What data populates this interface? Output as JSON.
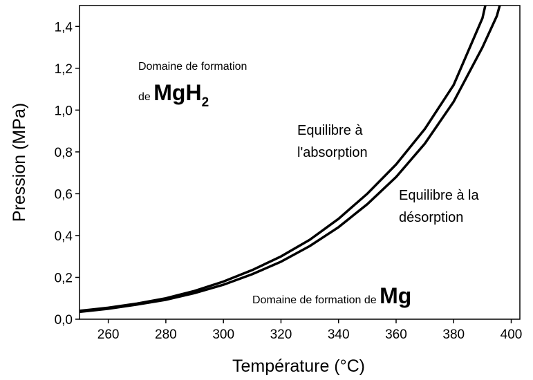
{
  "chart_data": {
    "type": "line",
    "xlabel": "Température (°C)",
    "ylabel": "Pression (MPa)",
    "xlim": [
      250,
      403
    ],
    "ylim": [
      0,
      1.5
    ],
    "xticks": [
      260,
      280,
      300,
      320,
      340,
      360,
      380,
      400
    ],
    "yticks": [
      {
        "value": 0,
        "label": "0,0"
      },
      {
        "value": 0.2,
        "label": "0,2"
      },
      {
        "value": 0.4,
        "label": "0,4"
      },
      {
        "value": 0.6,
        "label": "0,6"
      },
      {
        "value": 0.8,
        "label": "0,8"
      },
      {
        "value": 1.0,
        "label": "1,0"
      },
      {
        "value": 1.2,
        "label": "1,2"
      },
      {
        "value": 1.4,
        "label": "1,4"
      }
    ],
    "grid": false,
    "series": [
      {
        "name": "Equilibre à l'absorption",
        "color": "#000000",
        "x": [
          250,
          260,
          270,
          280,
          290,
          300,
          310,
          320,
          330,
          340,
          350,
          360,
          370,
          380,
          390,
          391
        ],
        "values": [
          0.04,
          0.055,
          0.075,
          0.1,
          0.135,
          0.18,
          0.235,
          0.3,
          0.38,
          0.48,
          0.6,
          0.74,
          0.91,
          1.12,
          1.44,
          1.5
        ]
      },
      {
        "name": "Equilibre à la désorption",
        "color": "#000000",
        "x": [
          250,
          260,
          270,
          280,
          290,
          300,
          310,
          320,
          330,
          340,
          350,
          360,
          370,
          380,
          390,
          395,
          396
        ],
        "values": [
          0.035,
          0.05,
          0.07,
          0.093,
          0.125,
          0.165,
          0.215,
          0.275,
          0.35,
          0.44,
          0.55,
          0.68,
          0.84,
          1.04,
          1.3,
          1.45,
          1.5
        ]
      }
    ],
    "annotations": {
      "mgh2_zone": {
        "line1": "Domaine de formation",
        "prefix": "de ",
        "formula": "MgH",
        "subscript": "2"
      },
      "absorption": {
        "line1": "Equilibre à",
        "line2": "l'absorption"
      },
      "desorption": {
        "line1": "Equilibre à la",
        "line2": "désorption"
      },
      "mg_zone": {
        "prefix": "Domaine de formation de ",
        "formula": "Mg"
      }
    }
  }
}
